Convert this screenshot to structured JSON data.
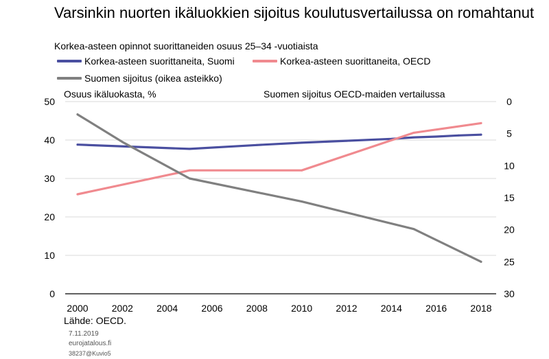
{
  "title": "Varsinkin nuorten ikäluokkien sijoitus koulutusvertailussa on romahtanut",
  "subtitle": "Korkea-asteen opinnot suorittaneiden osuus 25–34 -vuotiaista",
  "left_axis_title": "Osuus ikäluokasta, %",
  "right_axis_title": "Suomen sijoitus OECD-maiden vertailussa",
  "source": "Lähde: OECD.",
  "date": "7.11.2019",
  "site": "eurojatalous.fi",
  "ref": "38237@Kuvio5",
  "chart_data": {
    "type": "line",
    "title": "Varsinkin nuorten ikäluokkien sijoitus koulutusvertailussa on romahtanut",
    "subtitle": "Korkea-asteen opinnot suorittaneiden osuus 25–34 -vuotiaista",
    "x_ticks": [
      2000,
      2002,
      2004,
      2006,
      2008,
      2010,
      2012,
      2014,
      2016,
      2018
    ],
    "xlim": [
      2000,
      2018
    ],
    "ylabel": "Osuus ikäluokasta, %",
    "ylim": [
      0,
      50
    ],
    "y_ticks": [
      0,
      10,
      20,
      30,
      40,
      50
    ],
    "y2label": "Suomen sijoitus OECD-maiden vertailussa",
    "y2lim": [
      0,
      30
    ],
    "y2_reversed": true,
    "y2_ticks": [
      0,
      5,
      10,
      15,
      20,
      25,
      30
    ],
    "grid": "horizontal",
    "legend_position": "top",
    "series": [
      {
        "name": "Korkea-asteen suorittaneita, Suomi",
        "axis": "left",
        "color": "#4a4fa0",
        "x": [
          2000,
          2005,
          2008,
          2010,
          2012,
          2014,
          2015,
          2016,
          2017,
          2018
        ],
        "y": [
          38.8,
          37.7,
          38.7,
          39.3,
          39.8,
          40.3,
          40.7,
          40.9,
          41.2,
          41.4
        ]
      },
      {
        "name": "Korkea-asteen suorittaneita, OECD",
        "axis": "left",
        "color": "#f08a8f",
        "x": [
          2000,
          2005,
          2010,
          2015,
          2018
        ],
        "y": [
          25.9,
          32.1,
          32.1,
          41.9,
          44.4
        ]
      },
      {
        "name": "Suomen sijoitus (oikea asteikko)",
        "axis": "right",
        "color": "#808080",
        "x": [
          2000,
          2002,
          2005,
          2010,
          2015,
          2018
        ],
        "y": [
          2,
          6.3,
          12,
          15.6,
          19.9,
          25
        ]
      }
    ]
  }
}
